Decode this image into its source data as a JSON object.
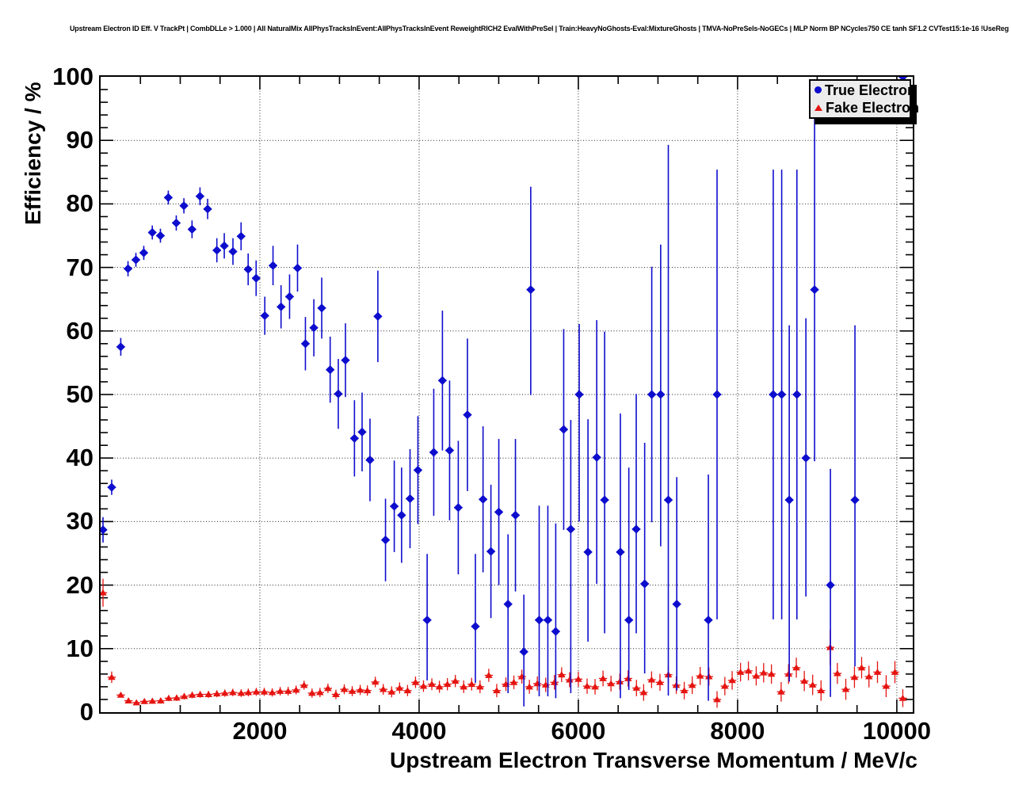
{
  "header": {
    "title": "Upstream Electron ID Eff. V TrackPt | CombDLLe > 1.000 | All NaturalMix AllPhysTracksInEvent:AllPhysTracksInEvent ReweightRICH2 EvalWithPreSel | Train:HeavyNoGhosts-Eval:MixtureGhosts | TMVA-NoPreSels-NoGECs | MLP Norm BP NCycles750 CE tanh SF1.2 CVTest15:1e-16 !UseReg"
  },
  "legend": {
    "entries": [
      {
        "label": "True Electron",
        "marker": "circle-icon",
        "color": "#0d0dce"
      },
      {
        "label": "Fake Electron",
        "marker": "triangle-icon",
        "color": "#e51410"
      }
    ]
  },
  "colors": {
    "true_electron": "#0d0dce",
    "fake_electron": "#e51410",
    "grid": "#000000",
    "legend_bg": "#ececec",
    "background": "#ffffff"
  },
  "chart_data": {
    "type": "scatter",
    "title": "Upstream Electron ID Eff. V TrackPt",
    "xlabel": "Upstream Electron Transverse Momentum / MeV/c",
    "ylabel": "Efficiency / %",
    "xlim": [
      0,
      10200
    ],
    "ylim": [
      0,
      100
    ],
    "x_ticks": [
      2000,
      4000,
      6000,
      8000,
      10000
    ],
    "y_ticks": [
      0,
      10,
      20,
      30,
      40,
      50,
      60,
      70,
      80,
      90,
      100
    ],
    "x_minor_step": 500,
    "y_minor_step": 2,
    "grid": "dotted",
    "legend_position": "top-right",
    "series": [
      {
        "name": "Fake Electron",
        "marker": "triangle-up",
        "color": "#e51410",
        "points_format": "[x, y, (optional y_err)] err defaults to 0.35+x*0.00014",
        "points": [
          [
            30,
            18.8,
            2.2
          ],
          [
            139,
            5.5,
            0.9
          ],
          [
            253,
            2.7
          ],
          [
            350,
            1.8
          ],
          [
            450,
            1.5
          ],
          [
            550,
            1.7
          ],
          [
            650,
            1.75
          ],
          [
            755,
            1.8
          ],
          [
            855,
            2.2
          ],
          [
            955,
            2.25
          ],
          [
            1050,
            2.5
          ],
          [
            1150,
            2.7
          ],
          [
            1250,
            2.8
          ],
          [
            1355,
            2.8
          ],
          [
            1460,
            2.9
          ],
          [
            1560,
            3.0
          ],
          [
            1660,
            3.1
          ],
          [
            1765,
            3.0
          ],
          [
            1855,
            3.1
          ],
          [
            1955,
            3.2
          ],
          [
            2055,
            3.2
          ],
          [
            2155,
            3.1
          ],
          [
            2255,
            3.3
          ],
          [
            2355,
            3.3
          ],
          [
            2455,
            3.5
          ],
          [
            2555,
            4.25
          ],
          [
            2655,
            3.0
          ],
          [
            2755,
            3.1
          ],
          [
            2855,
            3.75
          ],
          [
            2955,
            2.8
          ],
          [
            3060,
            3.6
          ],
          [
            3160,
            3.3
          ],
          [
            3260,
            3.5
          ],
          [
            3350,
            3.4
          ],
          [
            3450,
            4.75
          ],
          [
            3550,
            3.6
          ],
          [
            3655,
            3.2
          ],
          [
            3755,
            3.8
          ],
          [
            3855,
            3.4
          ],
          [
            3955,
            4.7
          ],
          [
            4055,
            4.1
          ],
          [
            4160,
            4.4
          ],
          [
            4255,
            4.0
          ],
          [
            4355,
            4.4
          ],
          [
            4455,
            4.9
          ],
          [
            4560,
            4.0
          ],
          [
            4660,
            4.4
          ],
          [
            4765,
            4.0
          ],
          [
            4875,
            5.8
          ],
          [
            4975,
            3.4
          ],
          [
            5090,
            4.4
          ],
          [
            5190,
            4.7
          ],
          [
            5290,
            5.6
          ],
          [
            5385,
            4.0
          ],
          [
            5485,
            4.5
          ],
          [
            5590,
            4.3
          ],
          [
            5700,
            4.7
          ],
          [
            5790,
            5.9
          ],
          [
            5890,
            5.1
          ],
          [
            6000,
            5.2
          ],
          [
            6110,
            4.1
          ],
          [
            6210,
            4.0
          ],
          [
            6310,
            5.3
          ],
          [
            6410,
            4.5
          ],
          [
            6520,
            4.8
          ],
          [
            6625,
            5.3
          ],
          [
            6730,
            3.8
          ],
          [
            6820,
            3.1
          ],
          [
            6920,
            5.1
          ],
          [
            7025,
            4.7
          ],
          [
            7130,
            5.9
          ],
          [
            7230,
            4.25
          ],
          [
            7330,
            3.4
          ],
          [
            7430,
            4.25
          ],
          [
            7530,
            5.7
          ],
          [
            7640,
            5.6
          ],
          [
            7742,
            2.0,
            1.3
          ],
          [
            7840,
            4.1
          ],
          [
            7932,
            5.0
          ],
          [
            8037,
            6.3
          ],
          [
            8136,
            6.5
          ],
          [
            8234,
            5.7
          ],
          [
            8327,
            6.2
          ],
          [
            8425,
            6.0
          ],
          [
            8547,
            3.2
          ],
          [
            8640,
            6.0
          ],
          [
            8738,
            7.0
          ],
          [
            8838,
            4.9
          ],
          [
            8943,
            4.3
          ],
          [
            9048,
            3.4
          ],
          [
            9163,
            10.2,
            2.8
          ],
          [
            9253,
            6.1
          ],
          [
            9359,
            3.6
          ],
          [
            9468,
            5.5
          ],
          [
            9558,
            7.0
          ],
          [
            9650,
            5.6
          ],
          [
            9757,
            6.3
          ],
          [
            9866,
            4.1
          ],
          [
            9976,
            6.3
          ],
          [
            10075,
            2.2,
            1.4
          ]
        ]
      },
      {
        "name": "True Electron",
        "marker": "diamond",
        "color": "#0d0dce",
        "points_format": "[x, y, err_low, err_high]",
        "points": [
          [
            30,
            28.7,
            2.0,
            2.0
          ],
          [
            139,
            35.4,
            1.2,
            1.2
          ],
          [
            253,
            57.5,
            1.4,
            1.4
          ],
          [
            344,
            69.8,
            1.2,
            1.2
          ],
          [
            443,
            71.2,
            1.1,
            1.1
          ],
          [
            542,
            72.3,
            1.1,
            1.1
          ],
          [
            649,
            75.5,
            1.1,
            1.1
          ],
          [
            751,
            75.0,
            1.1,
            1.1
          ],
          [
            850,
            81.0,
            1.1,
            1.1
          ],
          [
            950,
            77.0,
            1.2,
            1.2
          ],
          [
            1046,
            79.7,
            1.2,
            1.2
          ],
          [
            1148,
            76.0,
            1.4,
            1.4
          ],
          [
            1248,
            81.2,
            1.4,
            1.4
          ],
          [
            1344,
            79.2,
            1.6,
            1.6
          ],
          [
            1460,
            72.7,
            1.9,
            1.9
          ],
          [
            1553,
            73.4,
            2.0,
            2.0
          ],
          [
            1662,
            72.5,
            2.1,
            2.1
          ],
          [
            1764,
            74.9,
            2.2,
            2.2
          ],
          [
            1853,
            69.7,
            2.5,
            2.5
          ],
          [
            1953,
            68.3,
            2.8,
            2.8
          ],
          [
            2062,
            62.4,
            3.0,
            3.0
          ],
          [
            2165,
            70.3,
            3.1,
            3.1
          ],
          [
            2266,
            63.8,
            3.4,
            3.4
          ],
          [
            2373,
            65.4,
            3.5,
            3.5
          ],
          [
            2473,
            69.9,
            3.7,
            3.7
          ],
          [
            2572,
            58.0,
            4.2,
            4.2
          ],
          [
            2678,
            60.5,
            4.5,
            4.5
          ],
          [
            2777,
            63.6,
            4.8,
            4.8
          ],
          [
            2883,
            53.9,
            5.2,
            5.2
          ],
          [
            2985,
            50.1,
            5.5,
            5.5
          ],
          [
            3075,
            55.4,
            5.8,
            5.8
          ],
          [
            3188,
            43.1,
            6.0,
            6.0
          ],
          [
            3284,
            44.1,
            6.2,
            6.2
          ],
          [
            3383,
            39.7,
            6.5,
            6.5
          ],
          [
            3482,
            62.3,
            7.2,
            7.2
          ],
          [
            3578,
            27.1,
            6.5,
            6.5
          ],
          [
            3688,
            32.4,
            7.2,
            7.2
          ],
          [
            3780,
            31.0,
            7.5,
            7.5
          ],
          [
            3886,
            33.6,
            7.8,
            7.8
          ],
          [
            3985,
            38.1,
            8.5,
            8.5
          ],
          [
            4101,
            14.5,
            9.5,
            10.4
          ],
          [
            4184,
            40.9,
            10.0,
            10.0
          ],
          [
            4293,
            52.2,
            11.0,
            11.0
          ],
          [
            4383,
            41.2,
            11.0,
            11.0
          ],
          [
            4492,
            32.2,
            10.5,
            10.5
          ],
          [
            4607,
            46.8,
            12.0,
            12.0
          ],
          [
            4707,
            13.5,
            8.9,
            11.4
          ],
          [
            4803,
            33.5,
            11.5,
            11.5
          ],
          [
            4902,
            25.3,
            10.5,
            10.5
          ],
          [
            5001,
            31.5,
            11.5,
            11.5
          ],
          [
            5117,
            17.0,
            14.0,
            11.0
          ],
          [
            5210,
            31.0,
            12.0,
            12.0
          ],
          [
            5316,
            9.5,
            8.6,
            9.0
          ],
          [
            5402,
            66.5,
            16.6,
            16.2
          ],
          [
            5508,
            14.5,
            12.0,
            18.0
          ],
          [
            5617,
            14.5,
            12.0,
            18.0
          ],
          [
            5716,
            12.7,
            10.5,
            17.0
          ],
          [
            5816,
            44.5,
            15.8,
            15.8
          ],
          [
            5905,
            28.8,
            25.8,
            17.2
          ],
          [
            6011,
            50.0,
            20.0,
            11.1
          ],
          [
            6121,
            25.2,
            14.1,
            20.9
          ],
          [
            6231,
            40.1,
            19.9,
            21.6
          ],
          [
            6330,
            33.4,
            21.0,
            26.5
          ],
          [
            6528,
            25.2,
            23.0,
            21.8
          ],
          [
            6634,
            14.5,
            11.0,
            24.0
          ],
          [
            6727,
            28.8,
            16.4,
            21.3
          ],
          [
            6833,
            20.2,
            14.1,
            22.2
          ],
          [
            6922,
            50.0,
            20.1,
            20.1
          ],
          [
            7034,
            50.0,
            23.9,
            23.6
          ],
          [
            7130,
            33.4,
            30.8,
            55.9
          ],
          [
            7236,
            17.0,
            13.6,
            20.0
          ],
          [
            7633,
            14.5,
            12.7,
            22.9
          ],
          [
            7742,
            50.0,
            35.4,
            35.4
          ],
          [
            8448,
            50.0,
            35.4,
            35.4
          ],
          [
            8554,
            50.0,
            35.4,
            35.4
          ],
          [
            8649,
            33.4,
            28.6,
            27.5
          ],
          [
            8745,
            50.0,
            35.4,
            35.4
          ],
          [
            8858,
            40.0,
            21.8,
            22.0
          ],
          [
            8967,
            66.5,
            27.0,
            26.9
          ],
          [
            9166,
            20.0,
            17.6,
            18.3
          ],
          [
            9474,
            33.4,
            26.2,
            27.5
          ],
          [
            10076,
            100.0,
            6.5,
            0.0
          ]
        ]
      }
    ]
  }
}
